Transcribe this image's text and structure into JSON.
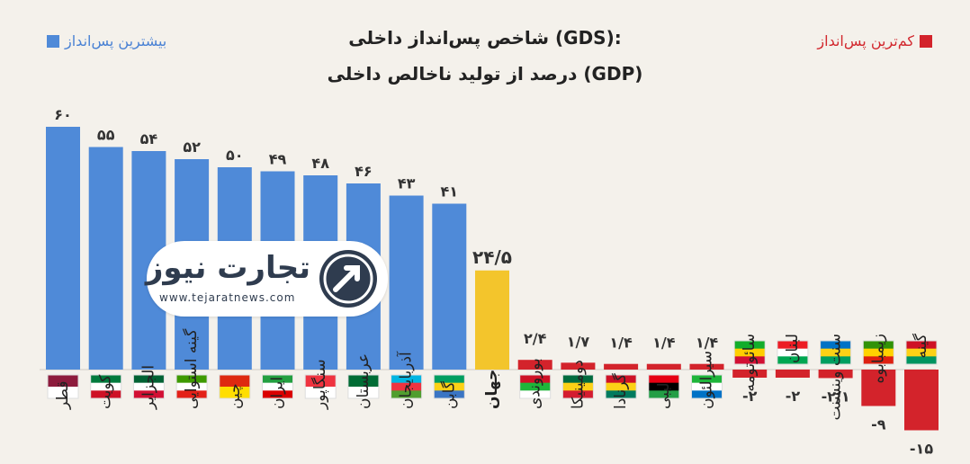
{
  "title_line1": "شاخص پس‌انداز داخلی (GDS):",
  "title_line2": "درصد از تولید ناخالص داخلی (GDP)",
  "legend_high": "بیشترین پس‌انداز",
  "legend_low": "کم‌ترین پس‌انداز",
  "logo": {
    "name": "تجارت نیوز",
    "url": "www.tejaratnews.com"
  },
  "colors": {
    "high": "#4f8ad8",
    "world": "#f3c52c",
    "low": "#d3232b",
    "background": "#f4f1eb"
  },
  "chart_data": {
    "type": "bar",
    "ylim": [
      -15,
      60
    ],
    "categories": [
      "قطر",
      "کویت",
      "الجزایر",
      "گینه استوایی",
      "چین",
      "ایران",
      "سنگاپور",
      "عربستان",
      "آذربایجان",
      "گابن",
      "جهان",
      "بوروندی",
      "دومینیکا",
      "گرنادا",
      "لیبی",
      "سیرالئون",
      "سائوتومه",
      "لبنان",
      "سنت وینسنت",
      "زیمبابوه",
      "گینه"
    ],
    "values": [
      60,
      55,
      54,
      52,
      50,
      49,
      48,
      46,
      43,
      41,
      24.5,
      2.4,
      1.7,
      1.4,
      1.4,
      1.4,
      -2,
      -2,
      -2.1,
      -9,
      -15
    ],
    "value_labels": [
      "۶۰",
      "۵۵",
      "۵۴",
      "۵۲",
      "۵۰",
      "۴۹",
      "۴۸",
      "۴۶",
      "۴۳",
      "۴۱",
      "۲۴/۵",
      "۲/۴",
      "۱/۷",
      "۱/۴",
      "۱/۴",
      "۱/۴",
      "-۲",
      "-۲",
      "-۲/۱",
      "-۹",
      "-۱۵"
    ],
    "groups": [
      "high",
      "high",
      "high",
      "high",
      "high",
      "high",
      "high",
      "high",
      "high",
      "high",
      "world",
      "low",
      "low",
      "low",
      "low",
      "low",
      "low",
      "low",
      "low",
      "low",
      "low"
    ],
    "flag_colors": [
      [
        "#8d1b3d",
        "#ffffff"
      ],
      [
        "#007a3d",
        "#ffffff",
        "#ce1126"
      ],
      [
        "#006233",
        "#ffffff",
        "#d21034"
      ],
      [
        "#3e9a00",
        "#ffffff",
        "#e32118"
      ],
      [
        "#de2910",
        "#ffde00"
      ],
      [
        "#239f40",
        "#ffffff",
        "#da0000"
      ],
      [
        "#ef3340",
        "#ffffff"
      ],
      [
        "#006c35",
        "#ffffff"
      ],
      [
        "#00b5e2",
        "#ef3340",
        "#509e2f"
      ],
      [
        "#009e60",
        "#fcd116",
        "#3a75c4"
      ],
      [],
      [
        "#ce1126",
        "#1eb53a",
        "#ffffff"
      ],
      [
        "#006b3f",
        "#fcd116",
        "#d41c30"
      ],
      [
        "#ce1126",
        "#fcd116",
        "#007a5e"
      ],
      [
        "#e70013",
        "#000000",
        "#239e46"
      ],
      [
        "#1eb53a",
        "#ffffff",
        "#0072c6"
      ],
      [
        "#12ad2b",
        "#ffce00",
        "#d21034"
      ],
      [
        "#ed1c24",
        "#ffffff",
        "#00a651"
      ],
      [
        "#0072c6",
        "#fcd116",
        "#009e60"
      ],
      [
        "#319208",
        "#ffd200",
        "#de2010"
      ],
      [
        "#ce1126",
        "#fcd116",
        "#009460"
      ]
    ]
  }
}
